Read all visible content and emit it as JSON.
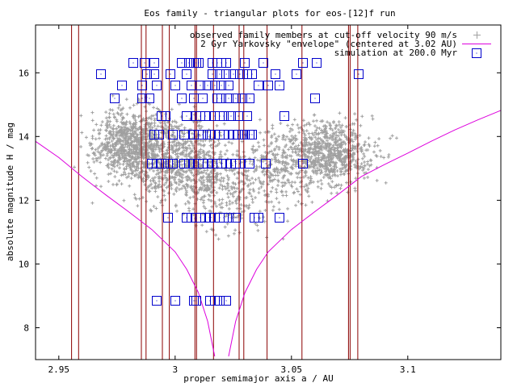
{
  "chart_data": {
    "type": "scatter",
    "title": "Eos family - triangular plots for eos-[12]f run",
    "xlabel": "proper semimajor axis a / AU",
    "ylabel": "absolute magnitude H / mag",
    "xlim": [
      2.94,
      3.14
    ],
    "ylim": [
      7.0,
      17.5
    ],
    "x_ticks": [
      2.95,
      3.0,
      3.05,
      3.1
    ],
    "x_tick_labels": [
      "2.95",
      "3",
      "3.05",
      "3.1"
    ],
    "y_ticks": [
      8,
      10,
      12,
      14,
      16
    ],
    "y_tick_labels": [
      "8",
      "10",
      "12",
      "14",
      "16"
    ],
    "grid": false,
    "legend_position": "top-right",
    "legend": [
      "observed family members at cut-off velocity 90 m/s",
      "2 Gyr Yarkovsky \"envelope\" (centered at 3.02 AU)",
      "simulation at 200.0 Myr"
    ],
    "colors": {
      "observed": "#a0a0a0",
      "envelope": "#dd00dd",
      "simulation": "#0000cc",
      "resonances": "#8b0000",
      "axes": "#000000"
    },
    "resonance_lines_x": [
      2.9555,
      2.9585,
      2.9855,
      2.9875,
      2.9945,
      2.9975,
      3.0085,
      3.0092,
      3.0165,
      3.0275,
      3.0295,
      3.0395,
      3.0545,
      3.0745,
      3.0752,
      3.0785
    ],
    "envelope": {
      "center": 3.02,
      "points": [
        [
          2.94,
          13.85
        ],
        [
          2.95,
          13.34
        ],
        [
          2.96,
          12.74
        ],
        [
          2.97,
          12.18
        ],
        [
          2.98,
          11.64
        ],
        [
          2.99,
          11.08
        ],
        [
          3.0,
          10.38
        ],
        [
          3.005,
          9.83
        ],
        [
          3.01,
          9.1
        ],
        [
          3.014,
          8.2
        ],
        [
          3.017,
          7.1
        ]
      ],
      "points_right": [
        [
          3.023,
          7.1
        ],
        [
          3.026,
          8.2
        ],
        [
          3.03,
          9.1
        ],
        [
          3.035,
          9.83
        ],
        [
          3.04,
          10.38
        ],
        [
          3.05,
          11.08
        ],
        [
          3.06,
          11.64
        ],
        [
          3.07,
          12.18
        ],
        [
          3.08,
          12.74
        ],
        [
          3.09,
          13.12
        ],
        [
          3.1,
          13.48
        ],
        [
          3.11,
          13.85
        ],
        [
          3.12,
          14.2
        ],
        [
          3.13,
          14.52
        ],
        [
          3.14,
          14.82
        ]
      ]
    },
    "observed_clusters": [
      {
        "x_center": 2.982,
        "x_spread": 0.012,
        "h_center": 13.7,
        "h_spread": 0.75,
        "count": 900
      },
      {
        "x_center": 3.004,
        "x_spread": 0.014,
        "h_center": 13.2,
        "h_spread": 0.9,
        "count": 650
      },
      {
        "x_center": 3.022,
        "x_spread": 0.012,
        "h_center": 12.3,
        "h_spread": 0.9,
        "count": 250
      },
      {
        "x_center": 3.066,
        "x_spread": 0.014,
        "h_center": 13.5,
        "h_spread": 0.7,
        "count": 750
      },
      {
        "x_center": 3.045,
        "x_spread": 0.012,
        "h_center": 13.0,
        "h_spread": 0.9,
        "count": 250
      }
    ],
    "simulation_points": [
      [
        2.968,
        15.95
      ],
      [
        2.974,
        15.2
      ],
      [
        2.977,
        15.6
      ],
      [
        2.982,
        16.3
      ],
      [
        2.987,
        16.3
      ],
      [
        2.988,
        15.95
      ],
      [
        2.986,
        15.6
      ],
      [
        2.986,
        15.2
      ],
      [
        2.989,
        15.2
      ],
      [
        2.991,
        16.3
      ],
      [
        2.991,
        15.95
      ],
      [
        2.992,
        15.6
      ],
      [
        2.994,
        14.65
      ],
      [
        2.993,
        14.05
      ],
      [
        2.991,
        14.05
      ],
      [
        2.996,
        14.65
      ],
      [
        2.999,
        14.05
      ],
      [
        2.99,
        13.15
      ],
      [
        2.992,
        13.15
      ],
      [
        2.994,
        13.15
      ],
      [
        2.997,
        13.15
      ],
      [
        2.999,
        13.15
      ],
      [
        2.997,
        11.45
      ],
      [
        2.992,
        8.85
      ],
      [
        3.0,
        8.85
      ],
      [
        2.998,
        15.95
      ],
      [
        3.0,
        15.6
      ],
      [
        3.003,
        16.3
      ],
      [
        3.005,
        15.95
      ],
      [
        3.003,
        15.2
      ],
      [
        3.005,
        14.65
      ],
      [
        3.004,
        14.05
      ],
      [
        3.006,
        16.3
      ],
      [
        3.008,
        16.3
      ],
      [
        3.009,
        16.3
      ],
      [
        3.01,
        16.3
      ],
      [
        3.007,
        15.6
      ],
      [
        3.011,
        15.6
      ],
      [
        3.014,
        15.6
      ],
      [
        3.008,
        15.2
      ],
      [
        3.012,
        15.2
      ],
      [
        3.009,
        14.65
      ],
      [
        3.011,
        14.65
      ],
      [
        3.013,
        14.65
      ],
      [
        3.008,
        14.05
      ],
      [
        3.01,
        14.05
      ],
      [
        3.012,
        14.05
      ],
      [
        3.015,
        14.05
      ],
      [
        3.004,
        13.15
      ],
      [
        3.006,
        13.15
      ],
      [
        3.008,
        13.15
      ],
      [
        3.01,
        13.15
      ],
      [
        3.012,
        13.15
      ],
      [
        3.014,
        13.15
      ],
      [
        3.005,
        11.45
      ],
      [
        3.007,
        11.45
      ],
      [
        3.009,
        11.45
      ],
      [
        3.011,
        11.45
      ],
      [
        3.013,
        11.45
      ],
      [
        3.015,
        11.45
      ],
      [
        3.017,
        11.45
      ],
      [
        3.019,
        11.45
      ],
      [
        3.021,
        11.45
      ],
      [
        3.023,
        11.45
      ],
      [
        3.008,
        8.85
      ],
      [
        3.009,
        8.85
      ],
      [
        3.015,
        8.85
      ],
      [
        3.017,
        8.85
      ],
      [
        3.019,
        8.85
      ],
      [
        3.022,
        8.85
      ],
      [
        3.016,
        16.3
      ],
      [
        3.018,
        16.3
      ],
      [
        3.02,
        16.3
      ],
      [
        3.022,
        16.3
      ],
      [
        3.016,
        15.95
      ],
      [
        3.019,
        15.95
      ],
      [
        3.022,
        15.95
      ],
      [
        3.025,
        15.95
      ],
      [
        3.028,
        15.95
      ],
      [
        3.017,
        15.6
      ],
      [
        3.02,
        15.6
      ],
      [
        3.023,
        15.6
      ],
      [
        3.018,
        15.2
      ],
      [
        3.02,
        15.2
      ],
      [
        3.023,
        15.2
      ],
      [
        3.026,
        15.2
      ],
      [
        3.029,
        15.2
      ],
      [
        3.017,
        14.65
      ],
      [
        3.019,
        14.65
      ],
      [
        3.021,
        14.65
      ],
      [
        3.024,
        14.65
      ],
      [
        3.027,
        14.65
      ],
      [
        3.017,
        14.05
      ],
      [
        3.019,
        14.05
      ],
      [
        3.021,
        14.05
      ],
      [
        3.023,
        14.05
      ],
      [
        3.025,
        14.05
      ],
      [
        3.027,
        14.05
      ],
      [
        3.029,
        14.05
      ],
      [
        3.016,
        13.15
      ],
      [
        3.018,
        13.15
      ],
      [
        3.02,
        13.15
      ],
      [
        3.022,
        13.15
      ],
      [
        3.024,
        13.15
      ],
      [
        3.026,
        13.15
      ],
      [
        3.028,
        13.15
      ],
      [
        3.03,
        16.3
      ],
      [
        3.031,
        15.95
      ],
      [
        3.033,
        15.95
      ],
      [
        3.032,
        15.2
      ],
      [
        3.031,
        14.65
      ],
      [
        3.03,
        14.05
      ],
      [
        3.032,
        14.05
      ],
      [
        3.033,
        14.05
      ],
      [
        3.026,
        11.45
      ],
      [
        3.034,
        11.45
      ],
      [
        3.036,
        11.45
      ],
      [
        3.032,
        13.15
      ],
      [
        3.039,
        13.15
      ],
      [
        3.036,
        15.6
      ],
      [
        3.038,
        16.3
      ],
      [
        3.04,
        15.6
      ],
      [
        3.043,
        15.95
      ],
      [
        3.045,
        15.6
      ],
      [
        3.047,
        14.65
      ],
      [
        3.045,
        11.45
      ],
      [
        3.052,
        15.95
      ],
      [
        3.055,
        16.3
      ],
      [
        3.055,
        13.15
      ],
      [
        3.06,
        15.2
      ],
      [
        3.061,
        16.3
      ],
      [
        3.079,
        15.95
      ]
    ]
  }
}
